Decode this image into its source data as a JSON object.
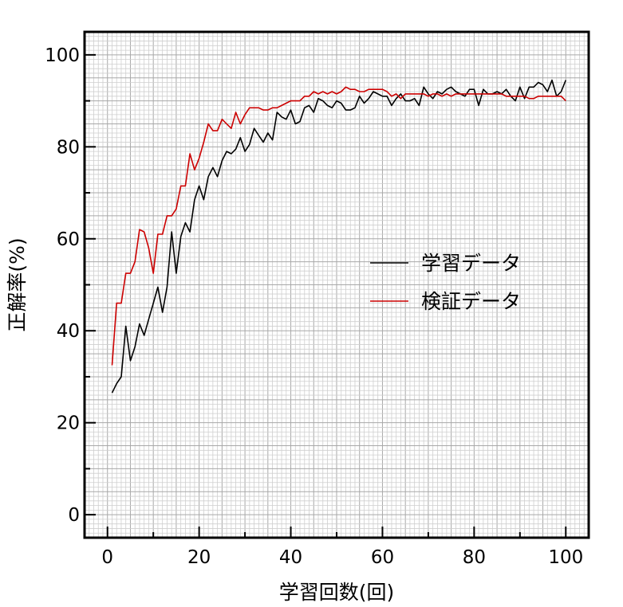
{
  "chart_data": {
    "type": "line",
    "title": "",
    "xlabel": "学習回数(回)",
    "ylabel": "正解率(%)",
    "xlim": [
      -5,
      105
    ],
    "ylim": [
      -5,
      105
    ],
    "xticks": [
      0,
      20,
      40,
      60,
      80,
      100
    ],
    "yticks": [
      0,
      20,
      40,
      60,
      80,
      100
    ],
    "grid": true,
    "legend_position": "right-middle",
    "x": [
      1,
      2,
      3,
      4,
      5,
      6,
      7,
      8,
      9,
      10,
      11,
      12,
      13,
      14,
      15,
      16,
      17,
      18,
      19,
      20,
      21,
      22,
      23,
      24,
      25,
      26,
      27,
      28,
      29,
      30,
      31,
      32,
      33,
      34,
      35,
      36,
      37,
      38,
      39,
      40,
      41,
      42,
      43,
      44,
      45,
      46,
      47,
      48,
      49,
      50,
      51,
      52,
      53,
      54,
      55,
      56,
      57,
      58,
      59,
      60,
      61,
      62,
      63,
      64,
      65,
      66,
      67,
      68,
      69,
      70,
      71,
      72,
      73,
      74,
      75,
      76,
      77,
      78,
      79,
      80,
      81,
      82,
      83,
      84,
      85,
      86,
      87,
      88,
      89,
      90,
      91,
      92,
      93,
      94,
      95,
      96,
      97,
      98,
      99,
      100
    ],
    "series": [
      {
        "name": "学習データ",
        "color": "#000000",
        "values": [
          26.5,
          28.5,
          30,
          41,
          33.5,
          36.5,
          41.5,
          39,
          42.5,
          46,
          49.5,
          44,
          49.5,
          61.5,
          52.5,
          60.5,
          63.5,
          61.5,
          68.5,
          71.5,
          68.5,
          73.5,
          75.5,
          73.5,
          77,
          79,
          78.5,
          79.5,
          82,
          79,
          80.5,
          84,
          82.5,
          81,
          83,
          81.5,
          87.5,
          86.5,
          86,
          88,
          85,
          85.5,
          88.5,
          89,
          87.5,
          90.5,
          90,
          89,
          88.5,
          90,
          89.5,
          88,
          88,
          88.5,
          91,
          89.5,
          90.5,
          92,
          91.5,
          91,
          91,
          89,
          90.5,
          91.5,
          90,
          90,
          90.5,
          89,
          93,
          91.5,
          90.5,
          92,
          91.5,
          92.5,
          93,
          92,
          91.5,
          91,
          92.5,
          92.5,
          89,
          92.5,
          91.5,
          91.5,
          92,
          91.5,
          92.5,
          91,
          90,
          93,
          90.5,
          93,
          93,
          94,
          93.5,
          92,
          94.5,
          91,
          92,
          94.5
        ]
      },
      {
        "name": "検証データ",
        "color": "#cc0000",
        "values": [
          32.5,
          46,
          46,
          52.5,
          52.5,
          55,
          62,
          61.5,
          58,
          52.5,
          61,
          61,
          65,
          65,
          66.5,
          71.5,
          71.5,
          78.5,
          75,
          77.5,
          81,
          85,
          83.5,
          83.5,
          86,
          85,
          84,
          87.5,
          85,
          87,
          88.5,
          88.5,
          88.5,
          88,
          88,
          88.5,
          88.5,
          89,
          89.5,
          90,
          90,
          90,
          91,
          91,
          92,
          91.5,
          92,
          91.5,
          92,
          91.5,
          92,
          93,
          92.5,
          92.5,
          92,
          92,
          92.5,
          92.5,
          92.5,
          92.5,
          92,
          91,
          91.5,
          90.5,
          91.5,
          91.5,
          91.5,
          91.5,
          91.5,
          91,
          91.5,
          91.5,
          91,
          91.5,
          91,
          91.5,
          91.5,
          91.5,
          91.5,
          91.5,
          91.5,
          91.5,
          91.5,
          91.5,
          91.5,
          91.5,
          91,
          91,
          91,
          91,
          91,
          90.5,
          90.5,
          91,
          91,
          91,
          91,
          91,
          91,
          90
        ]
      }
    ]
  }
}
